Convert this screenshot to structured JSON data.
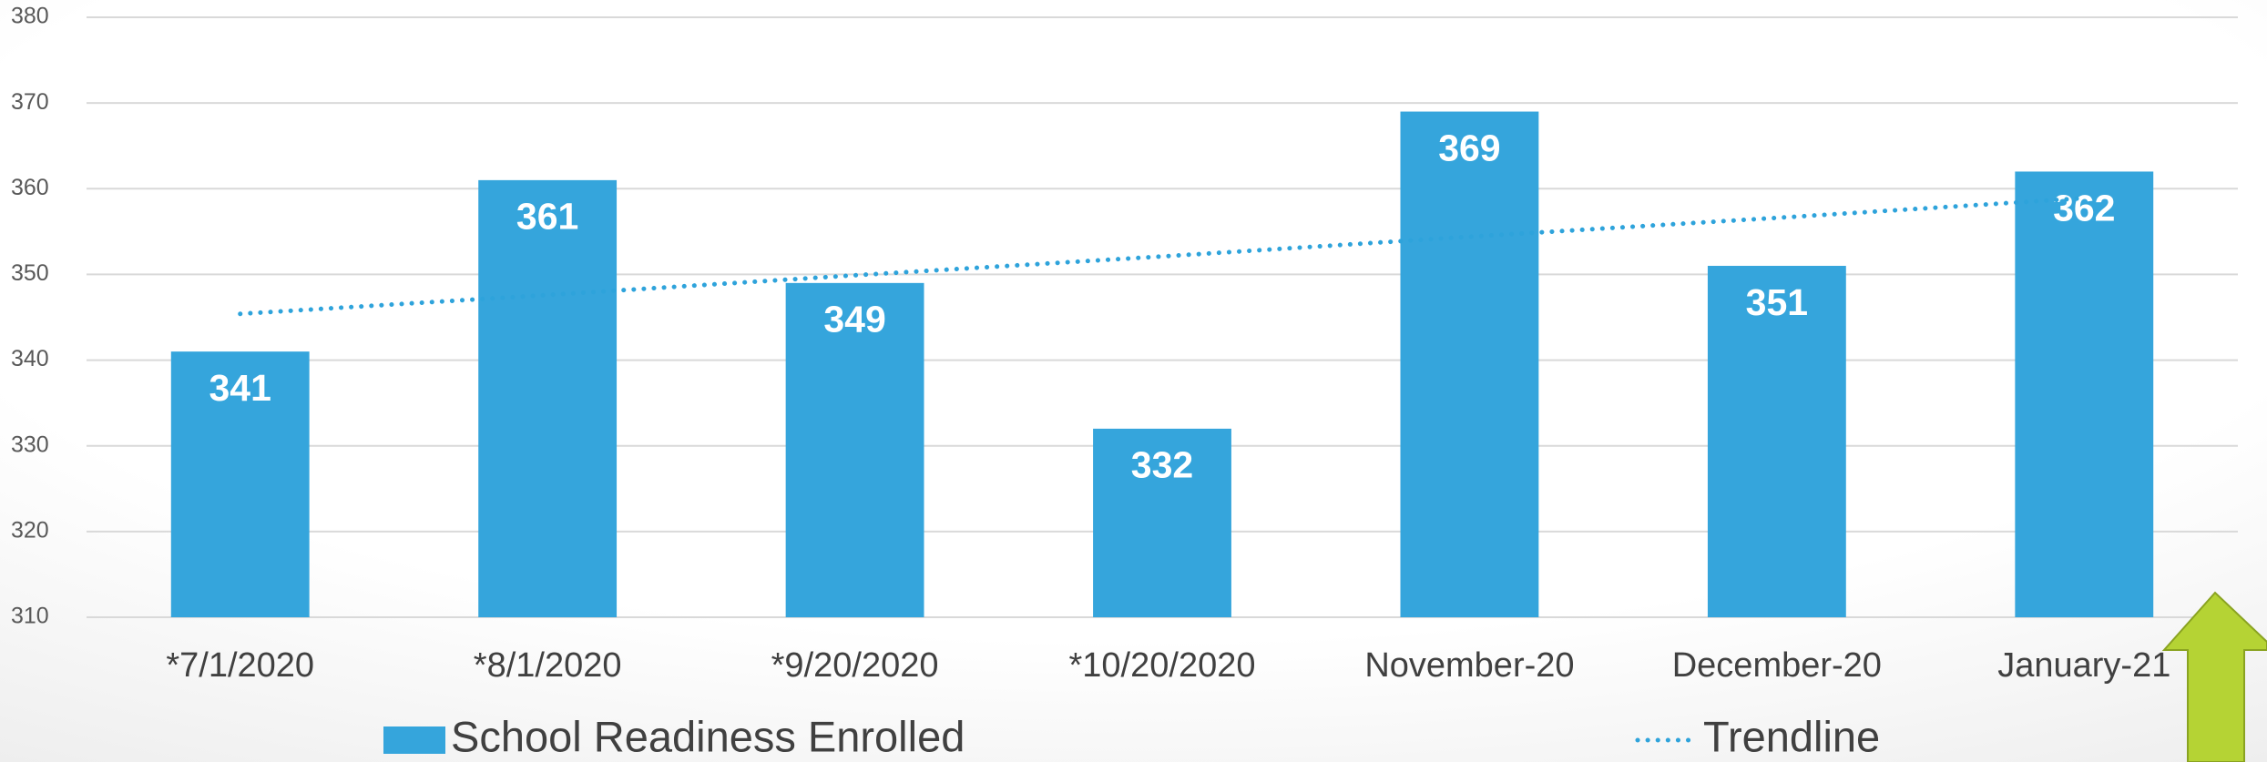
{
  "chart_data": {
    "type": "bar",
    "categories": [
      "*7/1/2020",
      "*8/1/2020",
      "*9/20/2020",
      "*10/20/2020",
      "November-20",
      "December-20",
      "January-21"
    ],
    "series": [
      {
        "name": "School Readiness Enrolled",
        "color": "#35a5dc",
        "values": [
          341,
          361,
          349,
          332,
          369,
          351,
          362
        ]
      },
      {
        "name": "Trendline",
        "type": "line",
        "dash": "dotted",
        "color": "#2ea3db",
        "values": [
          345.4,
          347.6,
          349.9,
          352.1,
          354.4,
          356.6,
          358.9
        ]
      }
    ],
    "ylim": [
      310,
      380
    ],
    "yticks": [
      310,
      320,
      330,
      340,
      350,
      360,
      370,
      380
    ],
    "grid": true,
    "legend": "bottom"
  }
}
